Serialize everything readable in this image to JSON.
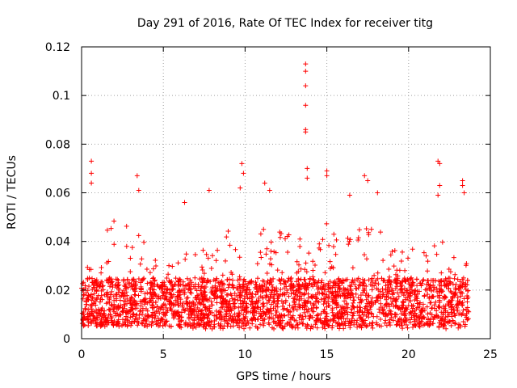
{
  "chart_data": {
    "type": "scatter",
    "title": "Day 291 of 2016, Rate Of TEC Index for receiver titg",
    "xlabel": "GPS time / hours",
    "ylabel": "ROTI / TECUs",
    "xlim": [
      0,
      25
    ],
    "ylim": [
      0,
      0.12
    ],
    "xticks": [
      0,
      5,
      10,
      15,
      20,
      25
    ],
    "xtick_labels": [
      "0",
      "5",
      "10",
      "15",
      "20",
      "25"
    ],
    "yticks": [
      0,
      0.02,
      0.04,
      0.06,
      0.08,
      0.1,
      0.12
    ],
    "ytick_labels": [
      "0",
      "0.02",
      "0.04",
      "0.06",
      "0.08",
      "0.1",
      "0.12"
    ],
    "grid": true,
    "marker": "plus",
    "color": "#ff0000",
    "series": [
      {
        "name": "ROTI",
        "notable_points": [
          {
            "x": 0.6,
            "y": 0.073
          },
          {
            "x": 0.6,
            "y": 0.068
          },
          {
            "x": 0.6,
            "y": 0.064
          },
          {
            "x": 3.4,
            "y": 0.067
          },
          {
            "x": 3.5,
            "y": 0.061
          },
          {
            "x": 6.3,
            "y": 0.056
          },
          {
            "x": 7.8,
            "y": 0.061
          },
          {
            "x": 9.8,
            "y": 0.072
          },
          {
            "x": 9.9,
            "y": 0.068
          },
          {
            "x": 9.7,
            "y": 0.062
          },
          {
            "x": 11.2,
            "y": 0.064
          },
          {
            "x": 11.5,
            "y": 0.061
          },
          {
            "x": 13.7,
            "y": 0.113
          },
          {
            "x": 13.7,
            "y": 0.11
          },
          {
            "x": 13.7,
            "y": 0.104
          },
          {
            "x": 13.7,
            "y": 0.096
          },
          {
            "x": 13.7,
            "y": 0.086
          },
          {
            "x": 13.7,
            "y": 0.085
          },
          {
            "x": 13.8,
            "y": 0.07
          },
          {
            "x": 13.8,
            "y": 0.066
          },
          {
            "x": 15.0,
            "y": 0.069
          },
          {
            "x": 15.0,
            "y": 0.067
          },
          {
            "x": 16.4,
            "y": 0.059
          },
          {
            "x": 17.3,
            "y": 0.067
          },
          {
            "x": 17.5,
            "y": 0.065
          },
          {
            "x": 18.1,
            "y": 0.06
          },
          {
            "x": 21.8,
            "y": 0.073
          },
          {
            "x": 21.9,
            "y": 0.072
          },
          {
            "x": 21.9,
            "y": 0.063
          },
          {
            "x": 21.8,
            "y": 0.059
          },
          {
            "x": 23.3,
            "y": 0.065
          },
          {
            "x": 23.3,
            "y": 0.063
          },
          {
            "x": 23.4,
            "y": 0.06
          }
        ],
        "density_profile": [
          {
            "x": 0.0,
            "y_min": 0.007,
            "y_max": 0.024
          },
          {
            "x": 1.0,
            "y_min": 0.005,
            "y_max": 0.045
          },
          {
            "x": 2.0,
            "y_min": 0.005,
            "y_max": 0.05
          },
          {
            "x": 3.0,
            "y_min": 0.005,
            "y_max": 0.045
          },
          {
            "x": 4.0,
            "y_min": 0.005,
            "y_max": 0.04
          },
          {
            "x": 5.0,
            "y_min": 0.005,
            "y_max": 0.028
          },
          {
            "x": 6.0,
            "y_min": 0.004,
            "y_max": 0.035
          },
          {
            "x": 7.0,
            "y_min": 0.004,
            "y_max": 0.04
          },
          {
            "x": 8.0,
            "y_min": 0.004,
            "y_max": 0.042
          },
          {
            "x": 9.0,
            "y_min": 0.004,
            "y_max": 0.045
          },
          {
            "x": 10.0,
            "y_min": 0.004,
            "y_max": 0.035
          },
          {
            "x": 11.0,
            "y_min": 0.004,
            "y_max": 0.045
          },
          {
            "x": 12.0,
            "y_min": 0.004,
            "y_max": 0.045
          },
          {
            "x": 13.0,
            "y_min": 0.004,
            "y_max": 0.045
          },
          {
            "x": 14.0,
            "y_min": 0.004,
            "y_max": 0.05
          },
          {
            "x": 15.0,
            "y_min": 0.004,
            "y_max": 0.048
          },
          {
            "x": 16.0,
            "y_min": 0.004,
            "y_max": 0.04
          },
          {
            "x": 17.0,
            "y_min": 0.004,
            "y_max": 0.045
          },
          {
            "x": 18.0,
            "y_min": 0.004,
            "y_max": 0.048
          },
          {
            "x": 19.0,
            "y_min": 0.004,
            "y_max": 0.04
          },
          {
            "x": 20.0,
            "y_min": 0.004,
            "y_max": 0.04
          },
          {
            "x": 21.0,
            "y_min": 0.004,
            "y_max": 0.042
          },
          {
            "x": 22.0,
            "y_min": 0.004,
            "y_max": 0.04
          },
          {
            "x": 23.0,
            "y_min": 0.004,
            "y_max": 0.045
          },
          {
            "x": 23.7,
            "y_min": 0.006,
            "y_max": 0.03
          }
        ],
        "x_end": 23.7,
        "typical_range": [
          0.005,
          0.025
        ]
      }
    ]
  }
}
